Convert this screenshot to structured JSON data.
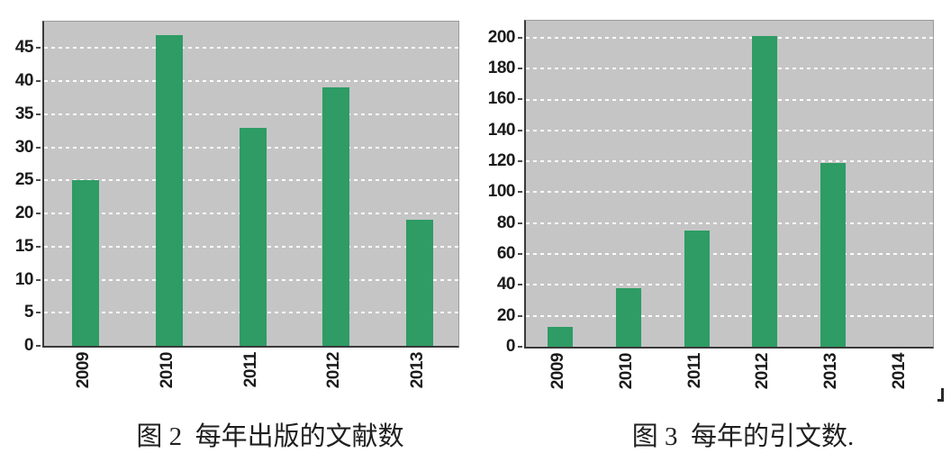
{
  "colors": {
    "bar_green": "#2E9C64",
    "plot_background": "#C5C5C6",
    "gridline_white": "#FFFFFF",
    "axis_dark": "#3A3A3A",
    "label_text": "#1B1B1B",
    "page_background": "#FFFFFF"
  },
  "chart_data": [
    {
      "type": "bar",
      "title": "图 2  每年出版的文献数",
      "categories": [
        "2009",
        "2010",
        "2011",
        "2012",
        "2013"
      ],
      "values": [
        25,
        47,
        33,
        39,
        19
      ],
      "xlabel": "",
      "ylabel": "",
      "ylim": [
        0,
        49
      ],
      "yticks": [
        0,
        5,
        10,
        15,
        20,
        25,
        30,
        35,
        40,
        45
      ],
      "grid": "horizontal dashed white on gray panel",
      "legend": "none",
      "bar_color": "#2E9C64",
      "x_tick_rotation": 90
    },
    {
      "type": "bar",
      "title": "图 3  每年的引文数.",
      "categories": [
        "2009",
        "2010",
        "2011",
        "2012",
        "2013",
        "2014"
      ],
      "values": [
        13,
        38,
        75,
        201,
        119,
        0
      ],
      "xlabel": "",
      "ylabel": "",
      "ylim": [
        0,
        211
      ],
      "yticks": [
        0,
        20,
        40,
        60,
        80,
        100,
        120,
        140,
        160,
        180,
        200
      ],
      "grid": "horizontal dashed white on gray panel",
      "legend": "none",
      "bar_color": "#2E9C64",
      "x_tick_rotation": 90
    }
  ],
  "artifacts": {
    "stray_mark_bottom_right": true
  }
}
